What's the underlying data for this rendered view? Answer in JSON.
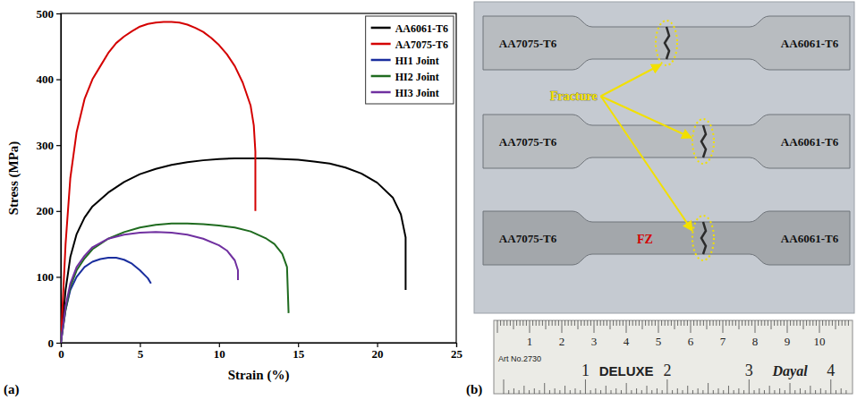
{
  "chart_data": {
    "type": "line",
    "x_label": "Strain (%)",
    "y_label": "Stress (MPa)",
    "xlim": [
      0,
      25
    ],
    "xticks": [
      0,
      5,
      10,
      15,
      20,
      25
    ],
    "ylim": [
      0,
      500
    ],
    "yticks": [
      0,
      100,
      200,
      300,
      400,
      500
    ],
    "grid": false,
    "legend": "top-right",
    "series": [
      {
        "name": "AA6061-T6",
        "color": "#000000",
        "x": [
          0,
          0.3,
          0.6,
          1,
          1.5,
          2,
          3,
          4,
          5,
          6,
          7,
          8,
          9,
          10,
          11,
          12,
          13,
          14,
          15,
          16,
          17,
          18,
          19,
          20,
          21,
          21.5,
          21.8,
          21.8
        ],
        "values": [
          0,
          80,
          130,
          165,
          190,
          207,
          228,
          244,
          256,
          264,
          270,
          274,
          277,
          279,
          280,
          280,
          280,
          279,
          278,
          275,
          272,
          266,
          257,
          243,
          220,
          195,
          160,
          80
        ]
      },
      {
        "name": "AA7075-T6",
        "color": "#d40000",
        "x": [
          0,
          0.3,
          0.6,
          1,
          1.5,
          2,
          2.5,
          3,
          3.5,
          4,
          4.5,
          5,
          5.5,
          6,
          6.5,
          7,
          7.5,
          8,
          8.5,
          9,
          9.5,
          10,
          10.5,
          11,
          11.5,
          12,
          12.2,
          12.3,
          12.3
        ],
        "values": [
          0,
          150,
          250,
          320,
          370,
          400,
          420,
          440,
          455,
          465,
          473,
          480,
          484,
          486,
          487,
          487,
          486,
          483,
          478,
          472,
          463,
          452,
          438,
          420,
          395,
          360,
          330,
          290,
          200
        ]
      },
      {
        "name": "HI1 Joint",
        "color": "#1a2e9e",
        "x": [
          0,
          0.3,
          0.6,
          1,
          1.5,
          2,
          2.5,
          3,
          3.5,
          4,
          4.5,
          5,
          5.5,
          5.7
        ],
        "values": [
          0,
          50,
          80,
          100,
          115,
          123,
          127,
          129,
          129,
          126,
          120,
          110,
          98,
          90
        ]
      },
      {
        "name": "HI2 Joint",
        "color": "#1f6b1f",
        "x": [
          0,
          0.3,
          0.6,
          1,
          1.5,
          2,
          3,
          4,
          5,
          6,
          7,
          8,
          9,
          10,
          11,
          12,
          13,
          13.5,
          14,
          14.3,
          14.4
        ],
        "values": [
          0,
          50,
          85,
          110,
          128,
          142,
          158,
          168,
          175,
          179,
          181,
          181,
          180,
          178,
          175,
          169,
          158,
          150,
          135,
          115,
          45
        ]
      },
      {
        "name": "HI3 Joint",
        "color": "#7030a0",
        "x": [
          0,
          0.3,
          0.6,
          1,
          1.5,
          2,
          3,
          4,
          5,
          6,
          7,
          8,
          9,
          10,
          10.5,
          11,
          11.2,
          11.2
        ],
        "values": [
          0,
          55,
          90,
          115,
          132,
          145,
          158,
          164,
          167,
          168,
          167,
          164,
          158,
          148,
          140,
          125,
          110,
          95
        ]
      }
    ]
  },
  "panel_labels": [
    "(a)",
    "(b)"
  ],
  "photo": {
    "specimens": [
      {
        "left": "AA7075-T6",
        "right": "AA6061-T6"
      },
      {
        "left": "AA7075-T6",
        "right": "AA6061-T6"
      },
      {
        "left": "AA7075-T6",
        "right": "AA6061-T6"
      }
    ],
    "callout": "Fracture",
    "fz_label": "FZ",
    "ruler": {
      "cm_labels": [
        1,
        2,
        3,
        4,
        5,
        6,
        7,
        8,
        9,
        10
      ],
      "inch_labels": [
        1,
        2,
        3,
        4
      ],
      "article": "Art No.2730",
      "brand": "DELUXE",
      "maker": "Dayal"
    }
  }
}
